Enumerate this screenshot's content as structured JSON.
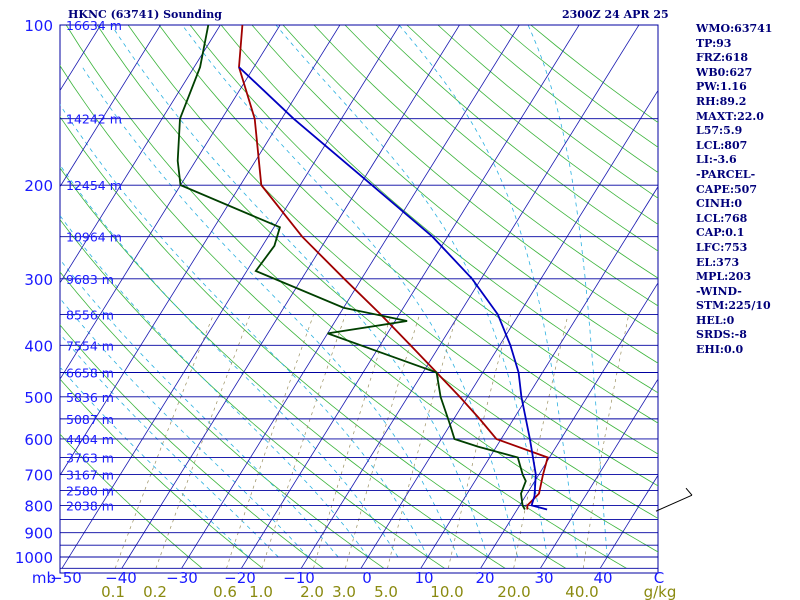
{
  "header": {
    "station": "HKNC (63741) Sounding",
    "time": "2300Z 24 APR 25"
  },
  "colors": {
    "isobar": "#0000a0",
    "isotherm": "#1818b0",
    "dry_adiabat": "#3cb43c",
    "moist_adiabat": "#2ab0e0",
    "mixing_ratio": "#9a9060",
    "temperature": "#a00000",
    "dewpoint": "#004000",
    "parcel": "#0000c0",
    "label_blue": "#1a1aff",
    "label_olive": "#8a8a10",
    "panel_text": "#00007a"
  },
  "sidebar": {
    "indices": [
      "WMO:63741",
      "TP:93",
      "FRZ:618",
      "WB0:627",
      "PW:1.16",
      "RH:89.2",
      "MAXT:22.0",
      "L57:5.9",
      "LCL:807",
      "LI:-3.6",
      "-PARCEL-",
      "CAPE:507",
      "CINH:0",
      "LCL:768",
      "CAP:0.1",
      "LFC:753",
      "EL:373",
      "MPL:203",
      "-WIND-",
      "STM:225/10",
      "HEL:0",
      "SRDS:-8",
      "EHI:0.0"
    ]
  },
  "axis": {
    "unit_pressure": "mb",
    "unit_mixing": "g/kg",
    "temp_ticks": [
      "-50",
      "-40",
      "-30",
      "-20",
      "-10",
      "0",
      "10",
      "20",
      "30",
      "40",
      "C"
    ],
    "mixing_ticks": [
      "0.1",
      "0.2",
      "0.6",
      "1.0",
      "2.0",
      "3.0",
      "5.0",
      "10.0",
      "20.0",
      "40.0"
    ]
  },
  "chart_data": {
    "type": "line",
    "title": "HKNC (63741) Sounding",
    "subtitle": "2300Z 24 APR 25",
    "xlabel": "C",
    "ylabel": "mb",
    "xlim": [
      -50,
      50
    ],
    "ylim": [
      1000,
      100
    ],
    "log_y": true,
    "grid": true,
    "pressure_ticks": [
      100,
      200,
      300,
      400,
      500,
      600,
      700,
      800,
      900,
      1000
    ],
    "height_labels": [
      {
        "p": 100,
        "label": "16634 m"
      },
      {
        "p": 150,
        "label": "14242 m"
      },
      {
        "p": 200,
        "label": "12454 m"
      },
      {
        "p": 250,
        "label": "10964 m"
      },
      {
        "p": 300,
        "label": "9683 m"
      },
      {
        "p": 350,
        "label": "8556 m"
      },
      {
        "p": 400,
        "label": "7554 m"
      },
      {
        "p": 450,
        "label": "6658 m"
      },
      {
        "p": 500,
        "label": "5836 m"
      },
      {
        "p": 550,
        "label": "5087 m"
      },
      {
        "p": 600,
        "label": "4404 m"
      },
      {
        "p": 650,
        "label": "3763 m"
      },
      {
        "p": 700,
        "label": "3167 m"
      },
      {
        "p": 750,
        "label": "2580 m"
      },
      {
        "p": 800,
        "label": "2038 m"
      }
    ],
    "series": [
      {
        "name": "Temperature",
        "points": [
          [
            814,
            21.7
          ],
          [
            800,
            21.3
          ],
          [
            760,
            22.0
          ],
          [
            700,
            20.7
          ],
          [
            650,
            19.7
          ],
          [
            600,
            9.2
          ],
          [
            550,
            4.3
          ],
          [
            500,
            -1.3
          ],
          [
            450,
            -7.7
          ],
          [
            400,
            -14.9
          ],
          [
            350,
            -23.1
          ],
          [
            300,
            -32.9
          ],
          [
            250,
            -44.3
          ],
          [
            200,
            -56.5
          ],
          [
            150,
            -64.5
          ],
          [
            120,
            -72.5
          ],
          [
            100,
            -76.3
          ]
        ]
      },
      {
        "name": "Dewpoint",
        "points": [
          [
            814,
            21.3
          ],
          [
            800,
            20.5
          ],
          [
            760,
            19.0
          ],
          [
            720,
            18.5
          ],
          [
            700,
            17.3
          ],
          [
            650,
            14.7
          ],
          [
            620,
            6.9
          ],
          [
            600,
            2.2
          ],
          [
            560,
            -0.3
          ],
          [
            500,
            -4.5
          ],
          [
            450,
            -7.7
          ],
          [
            380,
            -30.0
          ],
          [
            360,
            -18.0
          ],
          [
            340,
            -30.0
          ],
          [
            290,
            -48.5
          ],
          [
            260,
            -48.0
          ],
          [
            240,
            -49.0
          ],
          [
            200,
            -70.0
          ],
          [
            180,
            -73.0
          ],
          [
            150,
            -77.0
          ],
          [
            120,
            -79.0
          ],
          [
            100,
            -82.0
          ]
        ]
      },
      {
        "name": "Parcel",
        "points": [
          [
            814,
            25.0
          ],
          [
            800,
            22.0
          ],
          [
            768,
            21.5
          ],
          [
            700,
            19.5
          ],
          [
            600,
            14.8
          ],
          [
            500,
            9.0
          ],
          [
            450,
            6.0
          ],
          [
            400,
            1.8
          ],
          [
            350,
            -3.5
          ],
          [
            300,
            -11.5
          ],
          [
            250,
            -22.5
          ],
          [
            200,
            -38.0
          ],
          [
            150,
            -58.0
          ],
          [
            120,
            -72.5
          ]
        ]
      }
    ],
    "wind_barb": {
      "p": 820,
      "dir": 225,
      "speed_kt": 10
    }
  }
}
